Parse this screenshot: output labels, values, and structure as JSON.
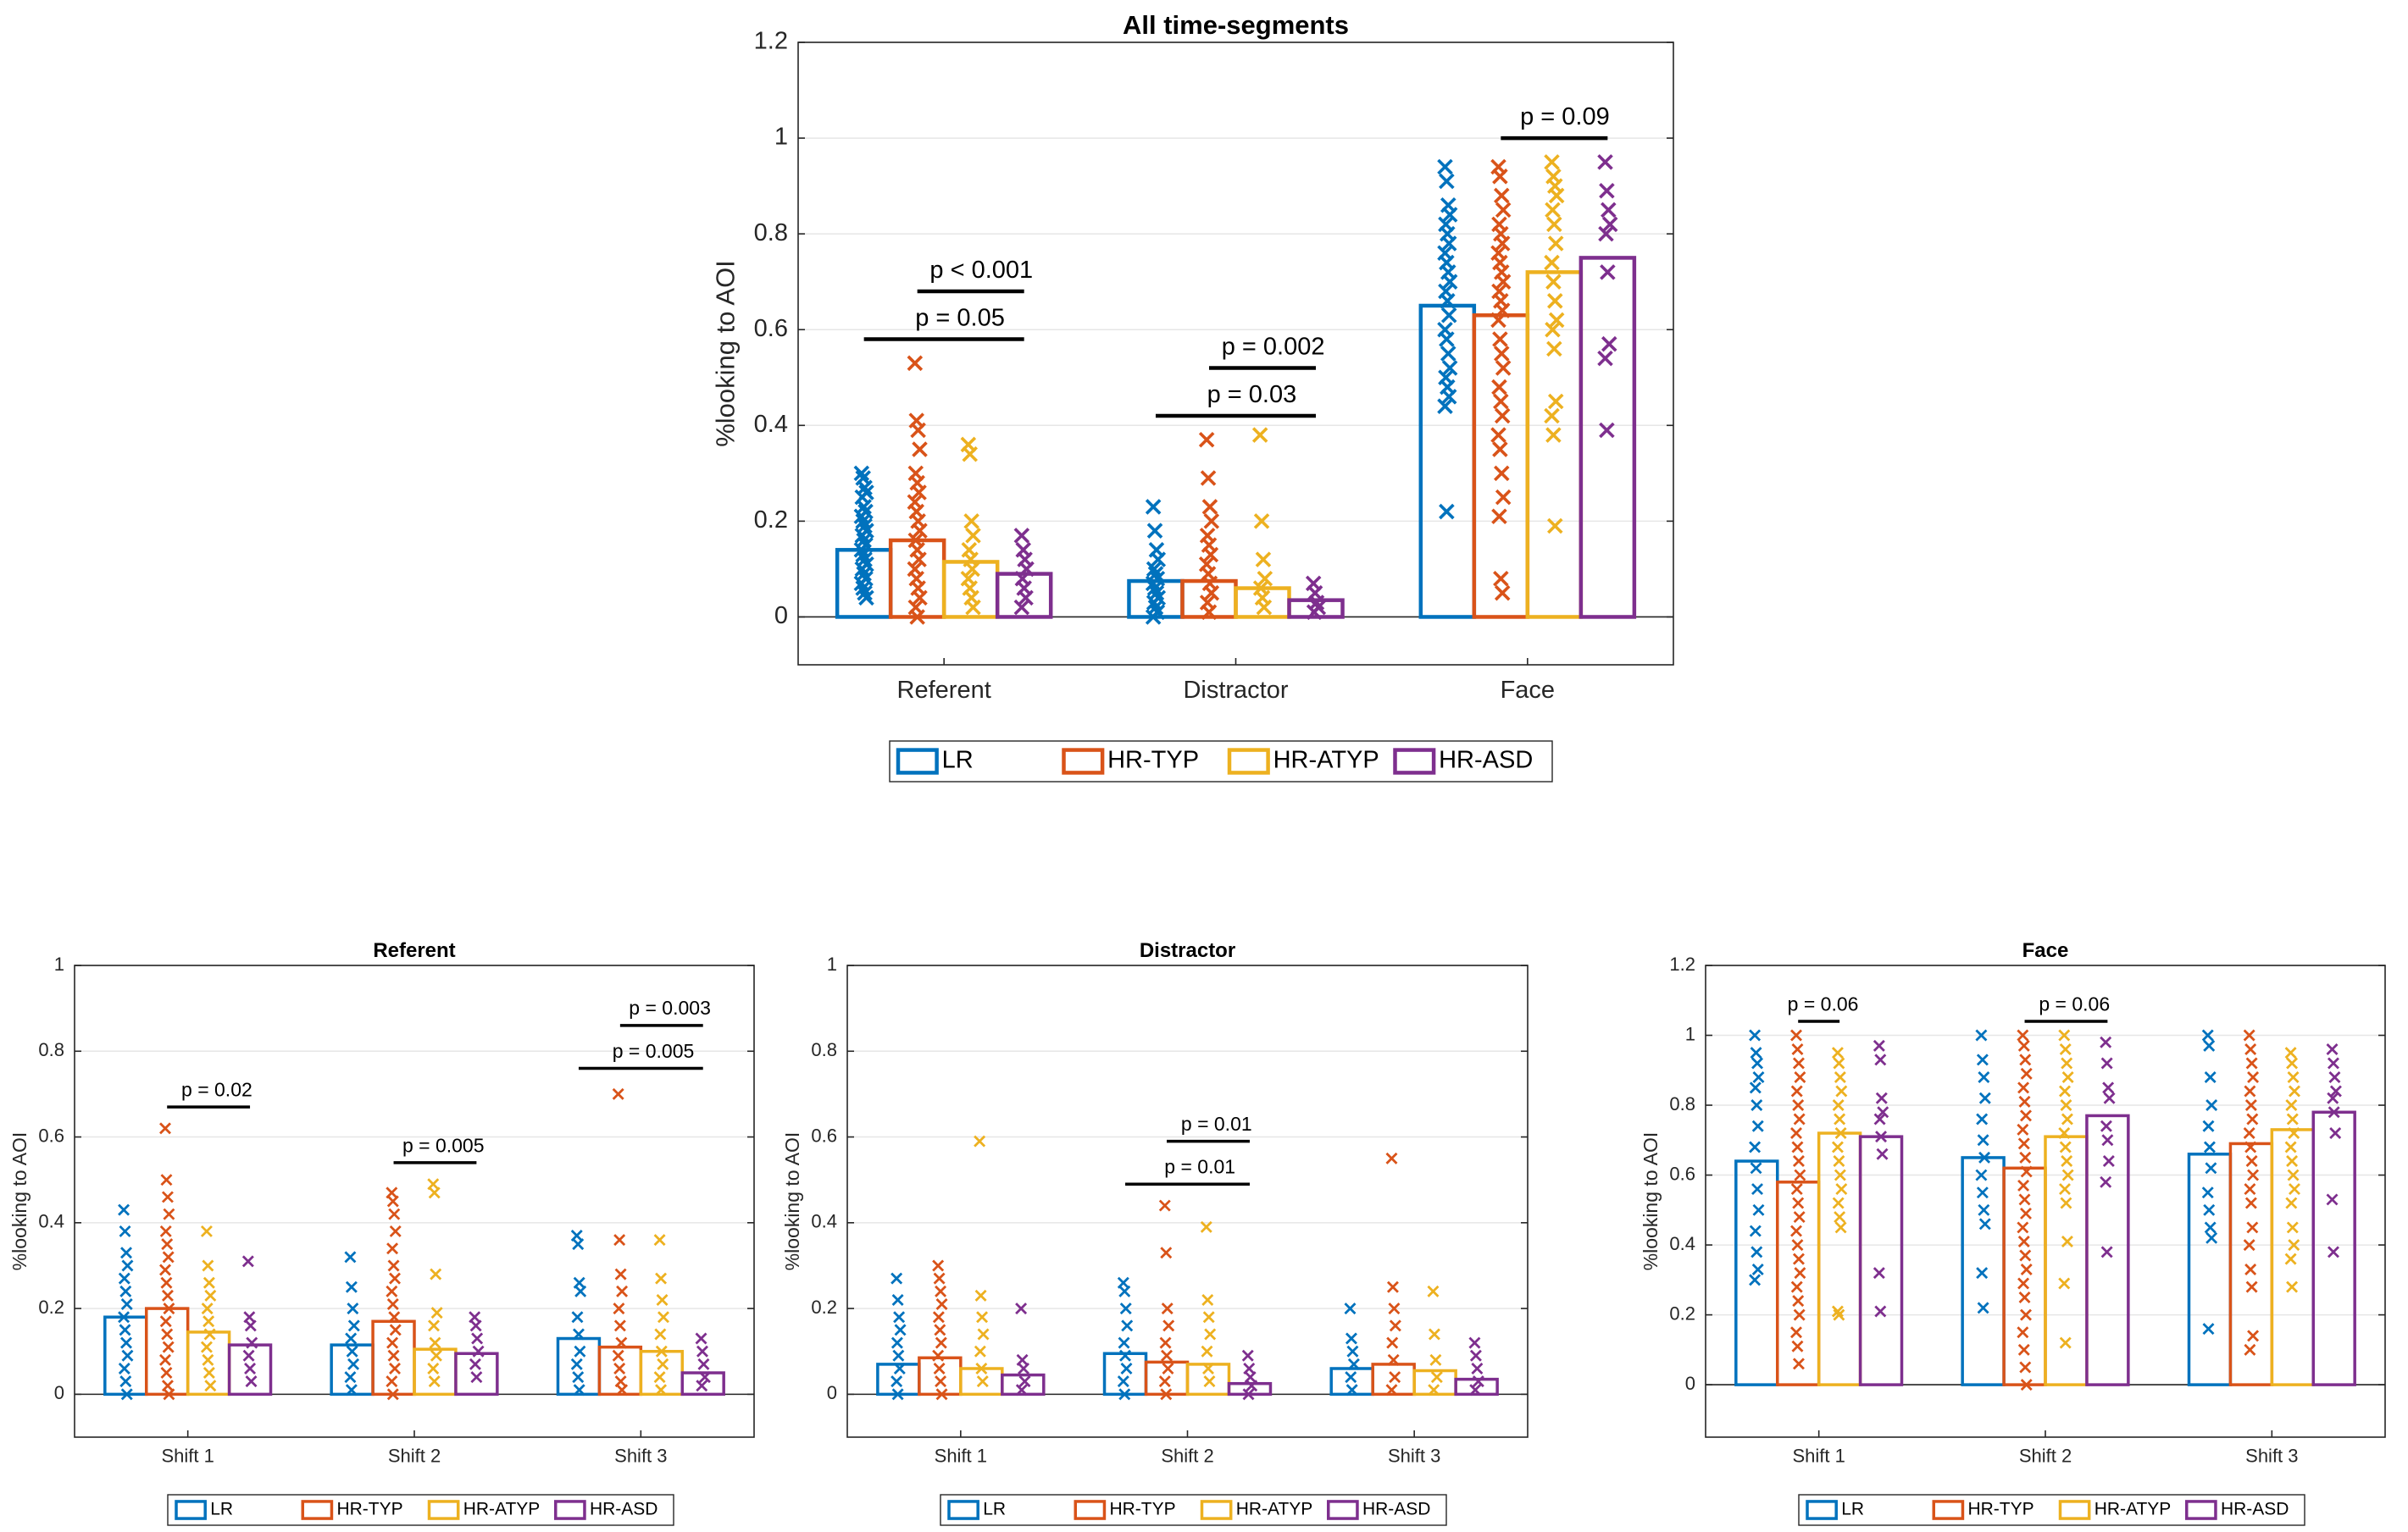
{
  "figure": {
    "group_names": [
      "LR",
      "HR-TYP",
      "HR-ATYP",
      "HR-ASD"
    ],
    "group_colors": [
      "#0072BD",
      "#D95319",
      "#EDB120",
      "#7E2F8E"
    ]
  },
  "chart_data": [
    {
      "id": "main",
      "type": "bar",
      "title": "All time-segments",
      "xlabel": "",
      "ylabel": "%looking to AOI",
      "categories": [
        "Referent",
        "Distractor",
        "Face"
      ],
      "ylim": [
        -0.1,
        1.2
      ],
      "yticks": [
        "0",
        "0.2",
        "0.4",
        "0.6",
        "0.8",
        "1",
        "1.2"
      ],
      "series": [
        {
          "name": "LR",
          "values": [
            0.14,
            0.075,
            0.65
          ],
          "points": [
            [
              0.3,
              0.29,
              0.27,
              0.26,
              0.25,
              0.23,
              0.22,
              0.21,
              0.2,
              0.19,
              0.18,
              0.17,
              0.16,
              0.15,
              0.14,
              0.13,
              0.12,
              0.11,
              0.1,
              0.09,
              0.08,
              0.07,
              0.06,
              0.05,
              0.04
            ],
            [
              0.23,
              0.18,
              0.14,
              0.12,
              0.1,
              0.09,
              0.08,
              0.07,
              0.06,
              0.05,
              0.04,
              0.03,
              0.02,
              0.01,
              0.0
            ],
            [
              0.94,
              0.91,
              0.86,
              0.84,
              0.82,
              0.8,
              0.78,
              0.76,
              0.74,
              0.72,
              0.7,
              0.68,
              0.66,
              0.63,
              0.6,
              0.58,
              0.55,
              0.52,
              0.5,
              0.48,
              0.46,
              0.44,
              0.22
            ]
          ]
        },
        {
          "name": "HR-TYP",
          "values": [
            0.16,
            0.075,
            0.63
          ],
          "points": [
            [
              0.53,
              0.41,
              0.39,
              0.35,
              0.3,
              0.28,
              0.26,
              0.24,
              0.22,
              0.2,
              0.18,
              0.16,
              0.14,
              0.12,
              0.1,
              0.08,
              0.06,
              0.04,
              0.02,
              0.0
            ],
            [
              0.37,
              0.29,
              0.23,
              0.2,
              0.17,
              0.15,
              0.13,
              0.11,
              0.09,
              0.07,
              0.05,
              0.03,
              0.01
            ],
            [
              0.94,
              0.92,
              0.88,
              0.85,
              0.82,
              0.8,
              0.78,
              0.76,
              0.74,
              0.72,
              0.7,
              0.68,
              0.66,
              0.64,
              0.62,
              0.58,
              0.55,
              0.52,
              0.48,
              0.45,
              0.42,
              0.38,
              0.35,
              0.3,
              0.25,
              0.21,
              0.08,
              0.05
            ]
          ]
        },
        {
          "name": "HR-ATYP",
          "values": [
            0.115,
            0.06,
            0.72
          ],
          "points": [
            [
              0.36,
              0.34,
              0.2,
              0.17,
              0.14,
              0.12,
              0.1,
              0.08,
              0.06,
              0.04,
              0.02
            ],
            [
              0.38,
              0.2,
              0.12,
              0.08,
              0.06,
              0.04,
              0.02
            ],
            [
              0.95,
              0.92,
              0.9,
              0.88,
              0.85,
              0.82,
              0.78,
              0.74,
              0.7,
              0.66,
              0.62,
              0.6,
              0.56,
              0.45,
              0.42,
              0.38,
              0.19
            ]
          ]
        },
        {
          "name": "HR-ASD",
          "values": [
            0.09,
            0.035,
            0.75
          ],
          "points": [
            [
              0.17,
              0.14,
              0.12,
              0.1,
              0.08,
              0.06,
              0.04,
              0.02
            ],
            [
              0.07,
              0.05,
              0.03,
              0.02,
              0.01
            ],
            [
              0.95,
              0.89,
              0.85,
              0.82,
              0.8,
              0.72,
              0.57,
              0.54,
              0.39
            ]
          ]
        }
      ],
      "annotations": [
        {
          "label": "p = 0.05",
          "category": 0,
          "from": 0,
          "to": 3,
          "y": 0.58
        },
        {
          "label": "p < 0.001",
          "category": 0,
          "from": 1,
          "to": 3,
          "y": 0.68
        },
        {
          "label": "p = 0.03",
          "category": 1,
          "from": 0,
          "to": 3,
          "y": 0.42
        },
        {
          "label": "p = 0.002",
          "category": 1,
          "from": 1,
          "to": 3,
          "y": 0.52
        },
        {
          "label": "p = 0.09",
          "category": 2,
          "from": 1,
          "to": 3,
          "y": 1.0
        }
      ],
      "legend": [
        "LR",
        "HR-TYP",
        "HR-ATYP",
        "HR-ASD"
      ],
      "legend_position": "bottom"
    },
    {
      "id": "referent",
      "type": "bar",
      "title": "Referent",
      "xlabel": "",
      "ylabel": "%looking to AOI",
      "categories": [
        "Shift 1",
        "Shift 2",
        "Shift 3"
      ],
      "ylim": [
        -0.1,
        1.0
      ],
      "yticks": [
        "0",
        "0.2",
        "0.4",
        "0.6",
        "0.8",
        "1"
      ],
      "series": [
        {
          "name": "LR",
          "values": [
            0.18,
            0.115,
            0.13
          ],
          "points": [
            [
              0.43,
              0.38,
              0.33,
              0.3,
              0.27,
              0.24,
              0.21,
              0.18,
              0.15,
              0.12,
              0.09,
              0.06,
              0.03,
              0.0
            ],
            [
              0.32,
              0.25,
              0.2,
              0.16,
              0.13,
              0.1,
              0.07,
              0.04,
              0.01
            ],
            [
              0.37,
              0.35,
              0.26,
              0.24,
              0.18,
              0.14,
              0.1,
              0.07,
              0.04,
              0.01
            ]
          ]
        },
        {
          "name": "HR-TYP",
          "values": [
            0.2,
            0.17,
            0.11
          ],
          "points": [
            [
              0.62,
              0.5,
              0.46,
              0.42,
              0.38,
              0.35,
              0.32,
              0.29,
              0.26,
              0.23,
              0.2,
              0.17,
              0.14,
              0.11,
              0.08,
              0.05,
              0.02,
              0.0
            ],
            [
              0.47,
              0.45,
              0.42,
              0.38,
              0.34,
              0.3,
              0.27,
              0.24,
              0.21,
              0.18,
              0.15,
              0.12,
              0.09,
              0.06,
              0.03,
              0.0
            ],
            [
              0.7,
              0.36,
              0.28,
              0.24,
              0.2,
              0.16,
              0.12,
              0.09,
              0.06,
              0.03,
              0.01
            ]
          ]
        },
        {
          "name": "HR-ATYP",
          "values": [
            0.145,
            0.105,
            0.1
          ],
          "points": [
            [
              0.38,
              0.3,
              0.26,
              0.23,
              0.2,
              0.17,
              0.14,
              0.11,
              0.08,
              0.05,
              0.02
            ],
            [
              0.49,
              0.47,
              0.28,
              0.19,
              0.16,
              0.12,
              0.09,
              0.06,
              0.03
            ],
            [
              0.36,
              0.27,
              0.22,
              0.18,
              0.14,
              0.1,
              0.07,
              0.04,
              0.01
            ]
          ]
        },
        {
          "name": "HR-ASD",
          "values": [
            0.115,
            0.095,
            0.05
          ],
          "points": [
            [
              0.31,
              0.18,
              0.16,
              0.12,
              0.09,
              0.06,
              0.03
            ],
            [
              0.18,
              0.16,
              0.13,
              0.1,
              0.07,
              0.04
            ],
            [
              0.13,
              0.1,
              0.07,
              0.04,
              0.02
            ]
          ]
        }
      ],
      "annotations": [
        {
          "label": "p = 0.02",
          "category": 0,
          "from": 1,
          "to": 3,
          "y": 0.67
        },
        {
          "label": "p = 0.005",
          "category": 1,
          "from": 1,
          "to": 3,
          "y": 0.54
        },
        {
          "label": "p = 0.005",
          "category": 2,
          "from": 0,
          "to": 3,
          "y": 0.76
        },
        {
          "label": "p = 0.003",
          "category": 2,
          "from": 1,
          "to": 3,
          "y": 0.86
        }
      ],
      "legend": [
        "LR",
        "HR-TYP",
        "HR-ATYP",
        "HR-ASD"
      ],
      "legend_position": "bottom"
    },
    {
      "id": "distractor",
      "type": "bar",
      "title": "Distractor",
      "xlabel": "",
      "ylabel": "%looking to AOI",
      "categories": [
        "Shift 1",
        "Shift 2",
        "Shift 3"
      ],
      "ylim": [
        -0.1,
        1.0
      ],
      "yticks": [
        "0",
        "0.2",
        "0.4",
        "0.6",
        "0.8",
        "1"
      ],
      "series": [
        {
          "name": "LR",
          "values": [
            0.07,
            0.095,
            0.06
          ],
          "points": [
            [
              0.27,
              0.22,
              0.18,
              0.15,
              0.12,
              0.09,
              0.06,
              0.03,
              0.0
            ],
            [
              0.26,
              0.24,
              0.2,
              0.16,
              0.12,
              0.09,
              0.06,
              0.03,
              0.0
            ],
            [
              0.2,
              0.13,
              0.1,
              0.07,
              0.04,
              0.01
            ]
          ]
        },
        {
          "name": "HR-TYP",
          "values": [
            0.085,
            0.075,
            0.07
          ],
          "points": [
            [
              0.3,
              0.27,
              0.24,
              0.21,
              0.18,
              0.15,
              0.12,
              0.09,
              0.06,
              0.03,
              0.0
            ],
            [
              0.44,
              0.33,
              0.2,
              0.16,
              0.12,
              0.09,
              0.06,
              0.03,
              0.0
            ],
            [
              0.55,
              0.25,
              0.2,
              0.16,
              0.12,
              0.08,
              0.04,
              0.01
            ]
          ]
        },
        {
          "name": "HR-ATYP",
          "values": [
            0.06,
            0.07,
            0.055
          ],
          "points": [
            [
              0.59,
              0.23,
              0.18,
              0.14,
              0.1,
              0.06,
              0.03
            ],
            [
              0.39,
              0.22,
              0.18,
              0.14,
              0.1,
              0.06,
              0.03
            ],
            [
              0.24,
              0.14,
              0.08,
              0.04,
              0.01
            ]
          ]
        },
        {
          "name": "HR-ASD",
          "values": [
            0.045,
            0.025,
            0.035
          ],
          "points": [
            [
              0.2,
              0.08,
              0.06,
              0.03,
              0.01
            ],
            [
              0.09,
              0.06,
              0.04,
              0.02,
              0.0
            ],
            [
              0.12,
              0.09,
              0.06,
              0.03,
              0.01
            ]
          ]
        }
      ],
      "annotations": [
        {
          "label": "p = 0.01",
          "category": 1,
          "from": 0,
          "to": 3,
          "y": 0.49
        },
        {
          "label": "p = 0.01",
          "category": 1,
          "from": 1,
          "to": 3,
          "y": 0.59
        }
      ],
      "legend": [
        "LR",
        "HR-TYP",
        "HR-ATYP",
        "HR-ASD"
      ],
      "legend_position": "bottom"
    },
    {
      "id": "face",
      "type": "bar",
      "title": "Face",
      "xlabel": "",
      "ylabel": "%looking to AOI",
      "categories": [
        "Shift 1",
        "Shift 2",
        "Shift 3"
      ],
      "ylim": [
        -0.15,
        1.2
      ],
      "yticks": [
        "0",
        "0.2",
        "0.4",
        "0.6",
        "0.8",
        "1",
        "1.2"
      ],
      "series": [
        {
          "name": "LR",
          "values": [
            0.64,
            0.65,
            0.66
          ],
          "points": [
            [
              1.0,
              0.95,
              0.92,
              0.88,
              0.85,
              0.8,
              0.74,
              0.68,
              0.62,
              0.56,
              0.5,
              0.44,
              0.38,
              0.33,
              0.3
            ],
            [
              1.0,
              0.93,
              0.88,
              0.82,
              0.76,
              0.7,
              0.65,
              0.6,
              0.55,
              0.5,
              0.46,
              0.32,
              0.22
            ],
            [
              1.0,
              0.97,
              0.88,
              0.8,
              0.74,
              0.68,
              0.62,
              0.55,
              0.5,
              0.45,
              0.42,
              0.16
            ]
          ]
        },
        {
          "name": "HR-TYP",
          "values": [
            0.58,
            0.62,
            0.69
          ],
          "points": [
            [
              1.0,
              0.96,
              0.92,
              0.88,
              0.84,
              0.8,
              0.76,
              0.72,
              0.68,
              0.64,
              0.6,
              0.56,
              0.52,
              0.48,
              0.44,
              0.4,
              0.36,
              0.32,
              0.28,
              0.24,
              0.2,
              0.15,
              0.11,
              0.06
            ],
            [
              1.0,
              0.97,
              0.93,
              0.89,
              0.85,
              0.81,
              0.77,
              0.73,
              0.69,
              0.65,
              0.61,
              0.57,
              0.53,
              0.49,
              0.45,
              0.41,
              0.37,
              0.33,
              0.29,
              0.25,
              0.2,
              0.15,
              0.1,
              0.05,
              0.0
            ],
            [
              1.0,
              0.96,
              0.92,
              0.88,
              0.84,
              0.8,
              0.76,
              0.72,
              0.68,
              0.64,
              0.6,
              0.56,
              0.52,
              0.45,
              0.4,
              0.33,
              0.28,
              0.14,
              0.1
            ]
          ]
        },
        {
          "name": "HR-ATYP",
          "values": [
            0.72,
            0.71,
            0.73
          ],
          "points": [
            [
              0.95,
              0.92,
              0.88,
              0.84,
              0.8,
              0.76,
              0.72,
              0.68,
              0.64,
              0.6,
              0.56,
              0.52,
              0.48,
              0.45,
              0.21,
              0.2
            ],
            [
              1.0,
              0.96,
              0.92,
              0.88,
              0.84,
              0.8,
              0.76,
              0.72,
              0.68,
              0.64,
              0.6,
              0.56,
              0.52,
              0.41,
              0.29,
              0.12
            ],
            [
              0.95,
              0.92,
              0.88,
              0.84,
              0.8,
              0.76,
              0.72,
              0.68,
              0.64,
              0.6,
              0.56,
              0.52,
              0.45,
              0.4,
              0.36,
              0.28
            ]
          ]
        },
        {
          "name": "HR-ASD",
          "values": [
            0.71,
            0.77,
            0.78
          ],
          "points": [
            [
              0.97,
              0.93,
              0.82,
              0.78,
              0.76,
              0.71,
              0.66,
              0.32,
              0.21
            ],
            [
              0.98,
              0.92,
              0.85,
              0.82,
              0.74,
              0.7,
              0.64,
              0.58,
              0.38
            ],
            [
              0.96,
              0.92,
              0.88,
              0.84,
              0.82,
              0.78,
              0.72,
              0.53,
              0.38
            ]
          ]
        }
      ],
      "annotations": [
        {
          "label": "p = 0.06",
          "category": 0,
          "from": 1,
          "to": 2,
          "y": 1.04
        },
        {
          "label": "p = 0.06",
          "category": 1,
          "from": 1,
          "to": 3,
          "y": 1.04
        }
      ],
      "legend": [
        "LR",
        "HR-TYP",
        "HR-ATYP",
        "HR-ASD"
      ],
      "legend_position": "bottom"
    }
  ]
}
